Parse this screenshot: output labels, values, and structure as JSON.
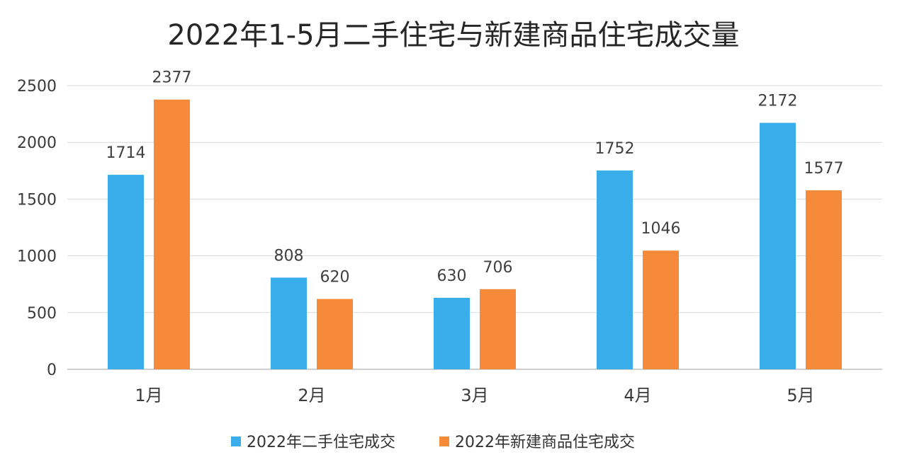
{
  "chart_data": {
    "type": "bar",
    "title": "2022年1-5月二手住宅与新建商品住宅成交量",
    "xlabel": "",
    "ylabel": "",
    "categories": [
      "1月",
      "2月",
      "3月",
      "4月",
      "5月"
    ],
    "series": [
      {
        "name": "2022年二手住宅成交",
        "color": "#3aaeea",
        "values": [
          1714,
          808,
          630,
          1752,
          2172
        ]
      },
      {
        "name": "2022年新建商品住宅成交",
        "color": "#f68a3a",
        "values": [
          2377,
          620,
          706,
          1046,
          1577
        ]
      }
    ],
    "ylim": [
      0,
      2500
    ],
    "yticks": [
      0,
      500,
      1000,
      1500,
      2000,
      2500
    ],
    "grid": true,
    "legend_position": "bottom",
    "data_labels": true
  }
}
